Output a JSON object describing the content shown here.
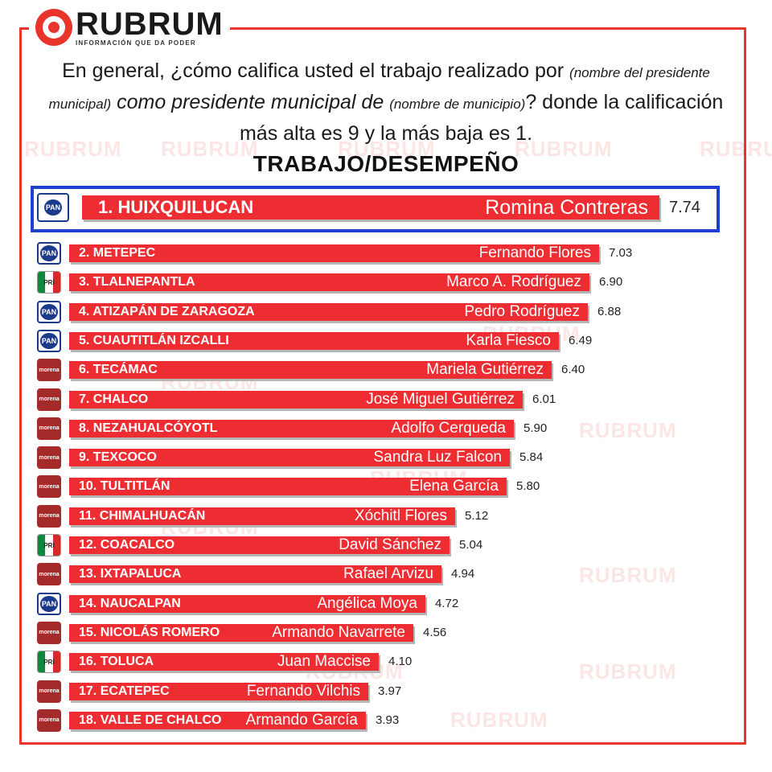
{
  "brand": {
    "name": "RUBRUM",
    "tagline": "INFORMACIÓN QUE DA PODER"
  },
  "question": {
    "part1": "En general, ¿cómo califica usted el trabajo realizado por",
    "paren1": "(nombre del presidente municipal)",
    "part2": "como presidente municipal de",
    "paren2": "(nombre de municipio)",
    "part3": "? donde la calificación más alta es 9 y la más baja es 1."
  },
  "chart_data": {
    "type": "bar",
    "orientation": "horizontal",
    "title": "TRABAJO/DESEMPEÑO",
    "categories": [
      "1. HUIXQUILUCAN",
      "2. METEPEC",
      "3. TLALNEPANTLA",
      "4. ATIZAPÁN DE ZARAGOZA",
      "5. CUAUTITLÁN IZCALLI",
      "6. TECÁMAC",
      "7. CHALCO",
      "8. NEZAHUALCÓYOTL",
      "9. TEXCOCO",
      "10. TULTITLÁN",
      "11. CHIMALHUACÁN",
      "12. COACALCO",
      "13. IXTAPALUCA",
      "14. NAUCALPAN",
      "15. NICOLÁS ROMERO",
      "16. TOLUCA",
      "17. ECATEPEC",
      "18. VALLE DE CHALCO"
    ],
    "presidents": [
      "Romina Contreras",
      "Fernando Flores",
      "Marco A.  Rodríguez",
      "Pedro  Rodríguez",
      "Karla Fiesco",
      "Mariela Gutiérrez",
      "José Miguel Gutiérrez",
      "Adolfo Cerqueda",
      "Sandra Luz Falcon",
      "Elena García",
      "Xóchitl Flores",
      "David Sánchez",
      "Rafael Arvizu",
      "Angélica Moya",
      "Armando Navarrete",
      "Juan Maccise",
      "Fernando Vilchis",
      "Armando García"
    ],
    "parties": [
      "PAN",
      "PAN",
      "PRI",
      "PAN",
      "PAN",
      "morena",
      "morena",
      "morena",
      "morena",
      "morena",
      "morena",
      "PRI",
      "morena",
      "PAN",
      "morena",
      "PRI",
      "morena",
      "morena"
    ],
    "values": [
      7.74,
      7.03,
      6.9,
      6.88,
      6.49,
      6.4,
      6.01,
      5.9,
      5.84,
      5.8,
      5.12,
      5.04,
      4.94,
      4.72,
      4.56,
      4.1,
      3.97,
      3.93
    ],
    "value_labels": [
      "7.74",
      "7.03",
      "6.90",
      "6.88",
      "6.49",
      "6.40",
      "6.01",
      "5.90",
      "5.84",
      "5.80",
      "5.12",
      "5.04",
      "4.94",
      "4.72",
      "4.56",
      "4.10",
      "3.97",
      "3.93"
    ],
    "scale": [
      1,
      9
    ],
    "highlight_index": 0,
    "colors": {
      "bar": "#ee2d33",
      "highlight_border": "#1f3fd0",
      "frame": "#e8342b"
    }
  },
  "party_badges": {
    "PAN": "PAN",
    "PRI": "PRI",
    "morena": "morena"
  }
}
